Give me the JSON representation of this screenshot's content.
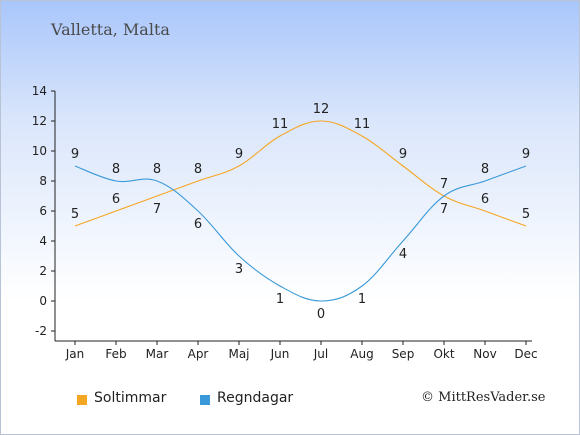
{
  "title": "Valletta, Malta",
  "copyright": "© MittResVader.se",
  "colors": {
    "sun": "#f5a623",
    "rain": "#3a9ad9",
    "axis": "#222222"
  },
  "chart_data": {
    "type": "line",
    "categories": [
      "Jan",
      "Feb",
      "Mar",
      "Apr",
      "Maj",
      "Jun",
      "Jul",
      "Aug",
      "Sep",
      "Okt",
      "Nov",
      "Dec"
    ],
    "ylim": [
      -2,
      14
    ],
    "yticks": [
      -2,
      0,
      2,
      4,
      6,
      8,
      10,
      12,
      14
    ],
    "grid": false,
    "legend_position": "bottom-left",
    "series": [
      {
        "name": "Soltimmar",
        "color": "#f5a623",
        "values": [
          5,
          6,
          7,
          8,
          9,
          11,
          12,
          11,
          9,
          7,
          6,
          5
        ]
      },
      {
        "name": "Regndagar",
        "color": "#3a9ad9",
        "values": [
          9,
          8,
          8,
          6,
          3,
          1,
          0,
          1,
          4,
          7,
          8,
          9
        ]
      }
    ]
  }
}
